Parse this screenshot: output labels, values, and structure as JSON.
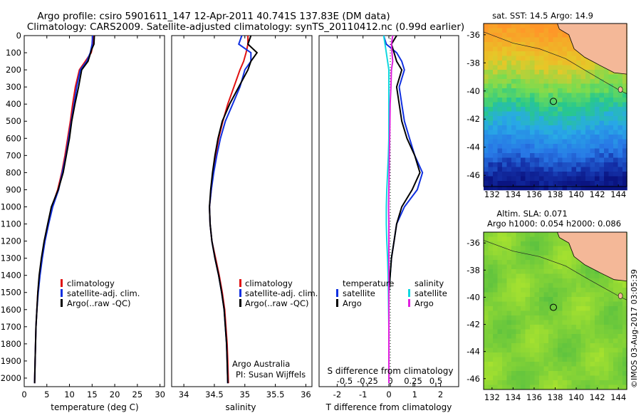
{
  "header": {
    "line1": "Argo profile: csiro 5901611_147 12-Apr-2011 40.741S 137.83E (DM data)",
    "line2": "Climatology: CARS2009. Satellite-adjusted climatology: synTS_20110412.nc (0.99d earlier)"
  },
  "colors": {
    "climatology": "#e01010",
    "satellite": "#1030e0",
    "argo": "#000000",
    "argo_salinity": "#e020e0",
    "satellite_salinity": "#10d8e0",
    "land": "#f4b898"
  },
  "chart_data": [
    {
      "type": "line",
      "xlabel": "temperature (deg C)",
      "xlim": [
        0,
        31
      ],
      "ylim": [
        2050,
        0
      ],
      "xticks": [
        0,
        5,
        10,
        15,
        20,
        25,
        30
      ],
      "yticks": [
        0,
        100,
        200,
        300,
        400,
        500,
        600,
        700,
        800,
        900,
        1000,
        1100,
        1200,
        1300,
        1400,
        1500,
        1600,
        1700,
        1800,
        1900,
        2000
      ],
      "legend": [
        "climatology",
        "satellite-adj. clim.",
        "Argo(..raw -QC)"
      ],
      "series": [
        {
          "name": "climatology",
          "color_key": "climatology",
          "x": [
            15.3,
            15.2,
            14.8,
            13.5,
            12.2,
            11.3,
            10.7,
            10.2,
            9.6,
            9.0,
            8.3,
            7.4,
            6.1,
            5.3,
            4.5,
            3.9,
            3.4,
            3.0,
            2.8,
            2.6,
            2.5,
            2.4,
            2.3
          ],
          "y": [
            0,
            50,
            100,
            150,
            200,
            300,
            400,
            500,
            600,
            700,
            800,
            900,
            1000,
            1100,
            1200,
            1300,
            1400,
            1500,
            1600,
            1700,
            1800,
            1900,
            2030
          ]
        },
        {
          "name": "satellite-adj. clim.",
          "color_key": "satellite",
          "x": [
            15.1,
            15.0,
            14.6,
            13.8,
            12.4,
            11.6,
            11.0,
            10.4,
            9.8,
            9.2,
            8.4,
            7.6,
            6.3,
            5.4,
            4.6,
            4.0,
            3.5,
            3.1,
            2.8,
            2.6,
            2.5,
            2.4,
            2.3
          ],
          "y": [
            0,
            50,
            100,
            150,
            200,
            300,
            400,
            500,
            600,
            700,
            800,
            900,
            1000,
            1100,
            1200,
            1300,
            1400,
            1500,
            1600,
            1700,
            1800,
            1900,
            2030
          ]
        },
        {
          "name": "Argo(..raw -QC)",
          "color_key": "argo",
          "x": [
            15.5,
            15.4,
            14.9,
            14.1,
            12.7,
            12.0,
            11.2,
            10.5,
            10.0,
            9.3,
            8.6,
            7.5,
            6.0,
            5.2,
            4.4,
            3.8,
            3.3,
            3.0,
            2.8,
            2.6,
            2.5,
            2.4,
            2.3
          ],
          "y": [
            0,
            50,
            80,
            150,
            200,
            300,
            400,
            500,
            600,
            700,
            800,
            900,
            1000,
            1100,
            1200,
            1300,
            1400,
            1500,
            1600,
            1700,
            1800,
            1900,
            2030
          ]
        }
      ]
    },
    {
      "type": "line",
      "xlabel": "salinity",
      "xlim": [
        33.8,
        36.1
      ],
      "ylim": [
        2050,
        0
      ],
      "xticks": [
        34,
        34.5,
        35,
        35.5,
        36
      ],
      "legend": [
        "climatology",
        "satellite-adj. clim.",
        "Argo(..raw -QC)"
      ],
      "annotation": [
        "Argo Australia",
        "PI: Susan Wijffels"
      ],
      "series": [
        {
          "name": "climatology",
          "color_key": "climatology",
          "x": [
            35.05,
            35.05,
            35.02,
            34.98,
            34.92,
            34.82,
            34.72,
            34.64,
            34.57,
            34.52,
            34.48,
            34.45,
            34.42,
            34.43,
            34.46,
            34.52,
            34.58,
            34.63,
            34.67,
            34.69,
            34.71,
            34.72,
            34.73
          ],
          "y": [
            0,
            50,
            100,
            150,
            200,
            300,
            400,
            500,
            600,
            700,
            800,
            900,
            1000,
            1100,
            1200,
            1300,
            1400,
            1500,
            1600,
            1700,
            1800,
            1900,
            2030
          ]
        },
        {
          "name": "satellite-adj. clim.",
          "color_key": "satellite",
          "x": [
            34.95,
            34.9,
            35.1,
            35.1,
            35.0,
            34.92,
            34.8,
            34.68,
            34.6,
            34.54,
            34.49,
            34.45,
            34.42,
            34.43,
            34.46,
            34.51,
            34.57,
            34.62,
            34.66,
            34.68,
            34.7,
            34.71,
            34.72
          ],
          "y": [
            0,
            50,
            100,
            150,
            200,
            300,
            400,
            500,
            600,
            700,
            800,
            900,
            1000,
            1100,
            1200,
            1300,
            1400,
            1500,
            1600,
            1700,
            1800,
            1900,
            2030
          ]
        },
        {
          "name": "Argo(..raw -QC)",
          "color_key": "argo",
          "x": [
            35.1,
            35.05,
            35.2,
            35.1,
            35.05,
            34.9,
            34.75,
            34.63,
            34.56,
            34.51,
            34.47,
            34.44,
            34.42,
            34.43,
            34.46,
            34.51,
            34.57,
            34.62,
            34.66,
            34.68,
            34.7,
            34.71,
            34.72
          ],
          "y": [
            0,
            50,
            100,
            150,
            200,
            300,
            400,
            500,
            600,
            700,
            800,
            900,
            1000,
            1100,
            1200,
            1300,
            1400,
            1500,
            1600,
            1700,
            1800,
            1900,
            2030
          ]
        }
      ]
    },
    {
      "type": "line",
      "xlabel": "T difference from climatology",
      "xlabel2": "S difference from climatology",
      "xlim": [
        -2.7,
        2.7
      ],
      "ylim": [
        2050,
        0
      ],
      "xticks": [
        -2,
        -1,
        0,
        1,
        2
      ],
      "xticks_s": [
        -0.5,
        -0.25,
        0,
        0.25,
        0.5
      ],
      "xticks_s_labels": [
        "-0.5",
        "-0.25",
        "0",
        "0.25",
        "0.5"
      ],
      "legend_headers": [
        "temperature",
        "salinity"
      ],
      "legend": [
        "satellite",
        "Argo",
        "satellite",
        "Argo"
      ],
      "series": [
        {
          "name": "satellite",
          "color_key": "satellite",
          "x": [
            -0.2,
            -0.1,
            0.3,
            0.5,
            0.6,
            0.4,
            0.5,
            0.6,
            0.8,
            1.0,
            1.3,
            1.1,
            0.6,
            0.3,
            0.2,
            0.1,
            0.05,
            0.0,
            0.0,
            0.0,
            0.0
          ],
          "y": [
            0,
            50,
            100,
            150,
            200,
            300,
            400,
            500,
            600,
            700,
            800,
            900,
            1000,
            1100,
            1200,
            1300,
            1400,
            1500,
            1600,
            1700,
            2030
          ]
        },
        {
          "name": "Argo",
          "color_key": "argo",
          "x": [
            0.3,
            0.1,
            0.2,
            0.3,
            0.5,
            0.3,
            0.4,
            0.5,
            0.7,
            1.0,
            1.2,
            0.9,
            0.5,
            0.3,
            0.2,
            0.1,
            0.05,
            0.0,
            0.0,
            0.0,
            0.0
          ],
          "y": [
            0,
            50,
            100,
            150,
            200,
            300,
            400,
            500,
            600,
            700,
            800,
            900,
            1000,
            1100,
            1200,
            1300,
            1400,
            1500,
            1600,
            1700,
            2030
          ]
        },
        {
          "name": "satellite",
          "color_key": "satellite_salinity",
          "x": [
            -0.2,
            -0.15,
            -0.1,
            -0.05,
            0.0,
            0.0,
            0.0,
            0.0,
            0.0,
            -0.02,
            -0.05,
            -0.08,
            -0.1,
            -0.1,
            -0.08,
            -0.05,
            -0.03,
            -0.02,
            -0.01,
            0.0,
            0.0
          ],
          "y": [
            0,
            50,
            100,
            150,
            200,
            300,
            400,
            500,
            600,
            700,
            800,
            900,
            1000,
            1100,
            1200,
            1300,
            1400,
            1500,
            1600,
            1700,
            2030
          ]
        },
        {
          "name": "Argo",
          "color_key": "argo_salinity",
          "x": [
            0.15,
            0.1,
            0.12,
            0.15,
            0.1,
            0.08,
            0.05,
            0.04,
            0.03,
            0.02,
            0.01,
            0.0,
            -0.01,
            0.0,
            0.0,
            0.0,
            0.0,
            0.0,
            0.0,
            0.0,
            0.0
          ],
          "y": [
            0,
            50,
            100,
            150,
            200,
            300,
            400,
            500,
            600,
            700,
            800,
            900,
            1000,
            1100,
            1200,
            1300,
            1400,
            1500,
            1600,
            1700,
            2030
          ]
        }
      ]
    },
    {
      "type": "heatmap",
      "title": "sat. SST: 14.5 Argo: 14.9",
      "xlim": [
        131.2,
        144.8
      ],
      "ylim": [
        -46.8,
        -35.2
      ],
      "xticks": [
        132,
        134,
        136,
        138,
        140,
        142,
        144
      ],
      "yticks": [
        -36,
        -38,
        -40,
        -42,
        -44,
        -46
      ],
      "marker": [
        137.83,
        -40.741
      ]
    },
    {
      "type": "heatmap",
      "title": "Altim. SLA: 0.071",
      "subtitle": "Argo h1000: 0.054 h2000: 0.086",
      "xlim": [
        131.2,
        144.8
      ],
      "ylim": [
        -46.8,
        -35.2
      ],
      "xticks": [
        132,
        134,
        136,
        138,
        140,
        142,
        144
      ],
      "yticks": [
        -36,
        -38,
        -40,
        -42,
        -44,
        -46
      ],
      "marker": [
        137.83,
        -40.741
      ]
    }
  ],
  "watermark": "©IMOS 03-Aug-2017 03:05:39"
}
